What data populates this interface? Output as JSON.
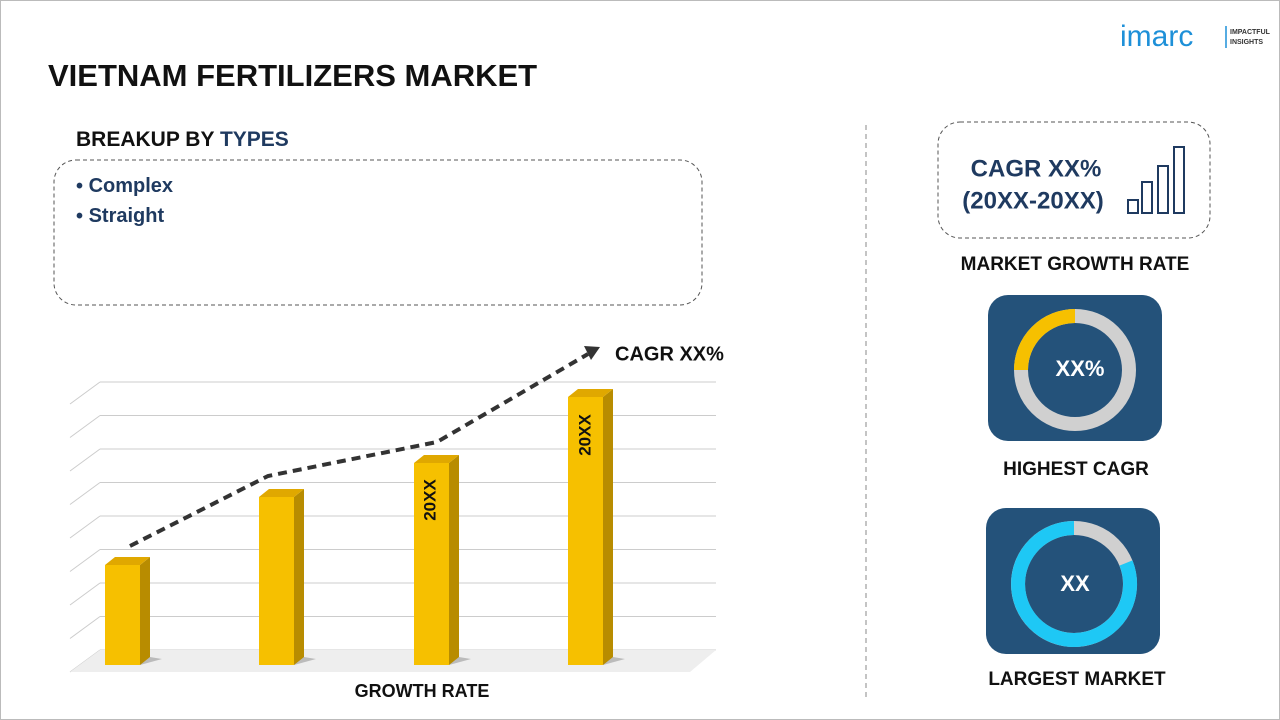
{
  "header": {
    "title": "VIETNAM FERTILIZERS MARKET",
    "logo": "imarc",
    "logo_tagline": [
      "IMPACTFUL",
      "INSIGHTS"
    ]
  },
  "breakup": {
    "heading_prefix": "BREAKUP BY",
    "heading_highlight": "TYPES",
    "items": [
      "Complex",
      "Straight"
    ]
  },
  "growth_chart": {
    "cagr_label": "CAGR XX%",
    "bar_labels": [
      "20XX",
      "20XX"
    ],
    "caption": "GROWTH RATE"
  },
  "market_growth": {
    "cagr": "CAGR XX%",
    "period": "(20XX-20XX)",
    "caption": "MARKET GROWTH RATE"
  },
  "highest_cagr": {
    "value": "XX%",
    "caption": "HIGHEST CAGR"
  },
  "largest_market": {
    "value": "XX",
    "caption": "LARGEST MARKET"
  }
}
